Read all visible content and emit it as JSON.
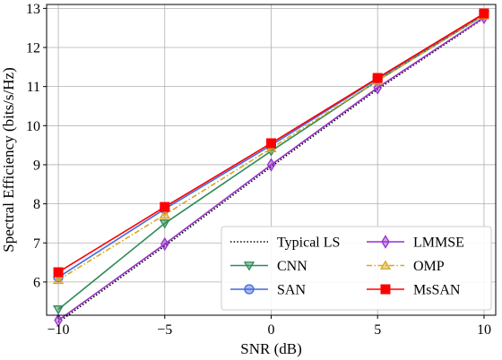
{
  "chart_data": {
    "type": "line",
    "xlabel": "SNR (dB)",
    "ylabel": "Spectral Efficiency (bits/s/Hz)",
    "xlim": [
      -10.55,
      10.55
    ],
    "ylim": [
      5.15,
      13.1
    ],
    "x": [
      -10,
      -5,
      0,
      5,
      10
    ],
    "xticks": [
      -10,
      -5,
      0,
      5,
      10
    ],
    "xtick_labels": [
      "−10",
      "−5",
      "0",
      "5",
      "10"
    ],
    "yticks": [
      6,
      7,
      8,
      9,
      10,
      11,
      12,
      13
    ],
    "ytick_labels": [
      "6",
      "7",
      "8",
      "9",
      "10",
      "11",
      "12",
      "13"
    ],
    "grid": true,
    "legend_position": "lower-right",
    "legend_columns": 2,
    "series": [
      {
        "name": "Typical LS",
        "values": [
          4.97,
          6.92,
          8.95,
          10.93,
          12.75
        ],
        "color": "#000000",
        "linestyle": "dotted",
        "marker": "none"
      },
      {
        "name": "CNN",
        "values": [
          5.3,
          7.5,
          9.35,
          11.15,
          12.83
        ],
        "color": "#2e8b57",
        "linestyle": "solid",
        "marker": "triangle-down"
      },
      {
        "name": "SAN",
        "values": [
          6.12,
          7.87,
          9.5,
          11.2,
          12.85
        ],
        "color": "#4169e1",
        "linestyle": "solid",
        "marker": "circle"
      },
      {
        "name": "LMMSE",
        "values": [
          5.02,
          6.97,
          9.0,
          10.97,
          12.77
        ],
        "color": "#9932cc",
        "linestyle": "solid",
        "marker": "diamond"
      },
      {
        "name": "OMP",
        "values": [
          6.05,
          7.72,
          9.42,
          11.15,
          12.82
        ],
        "color": "#daa520",
        "linestyle": "dashdot",
        "marker": "triangle-up"
      },
      {
        "name": "MsSAN",
        "values": [
          6.25,
          7.92,
          9.55,
          11.22,
          12.87
        ],
        "color": "#ff0000",
        "linestyle": "solid",
        "marker": "square"
      }
    ]
  }
}
